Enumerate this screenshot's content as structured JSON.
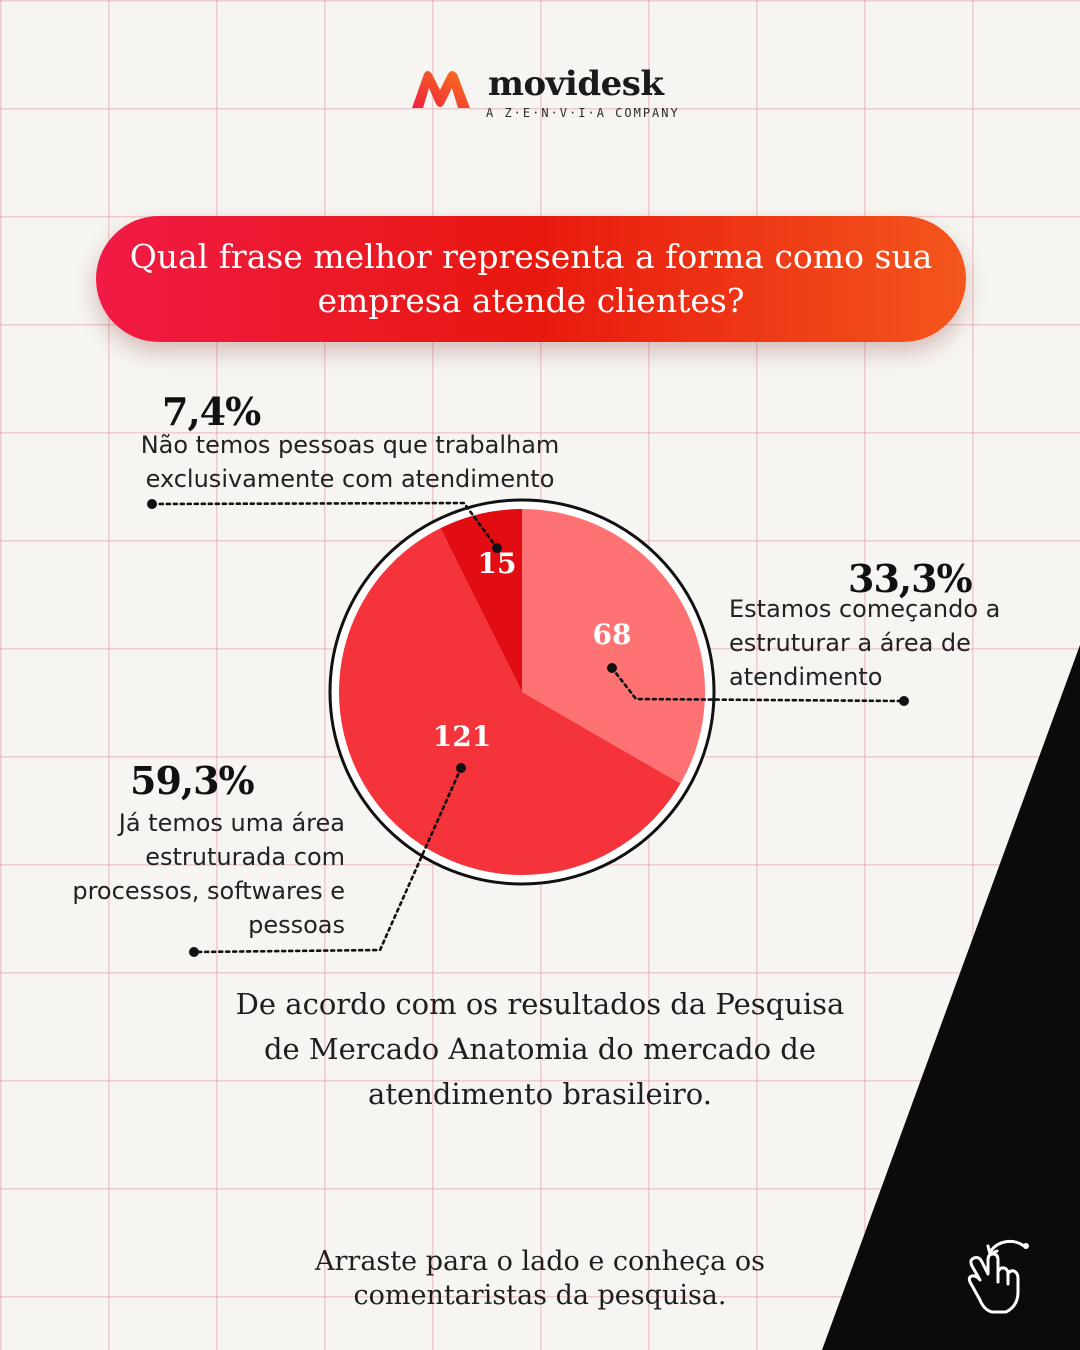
{
  "brand": {
    "name": "movidesk",
    "tagline": "A Z·E·N·V·I·A COMPANY",
    "logo_colors": [
      "#f0203f",
      "#f7761b"
    ]
  },
  "question": {
    "text": "Qual frase melhor representa a forma como sua empresa atende clientes?",
    "colors": [
      "#f01a46",
      "#e8180e",
      "#f4561c"
    ]
  },
  "chart_data": {
    "type": "pie",
    "title": "Qual frase melhor representa a forma como sua empresa atende clientes?",
    "slices": [
      {
        "value": 68,
        "percent": "33,3%",
        "label": "Estamos começando a estruturar a área de atendimento",
        "color": "#ff7274"
      },
      {
        "value": 121,
        "percent": "59,3%",
        "label": "Já temos uma área estruturada com processos, softwares e pessoas",
        "color": "#f5333a"
      },
      {
        "value": 15,
        "percent": "7,4%",
        "label": "Não temos pessoas que trabalham exclusivamente com atendimento",
        "color": "#e20d12"
      }
    ],
    "start": "12 o'clock",
    "direction": "clockwise",
    "legend": "none"
  },
  "footnote": "De acordo com os resultados da Pesquisa de Mercado Anatomia do mercado de atendimento brasileiro.",
  "cta": "Arraste para o lado e conheça os comentaristas da pesquisa.",
  "icons": {
    "swipe": "swipe-hand-icon"
  }
}
